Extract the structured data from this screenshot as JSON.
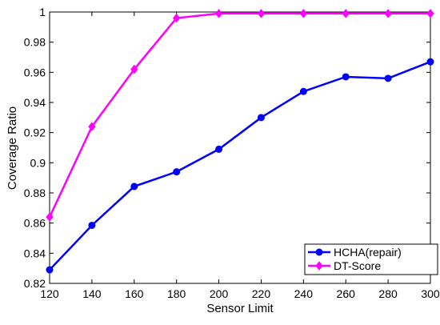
{
  "chart_data": {
    "type": "line",
    "x_label": "Sensor Limit",
    "y_label": "Coverage Ratio",
    "x": [
      120,
      140,
      160,
      180,
      200,
      220,
      240,
      260,
      280,
      300
    ],
    "series": [
      {
        "name": "HCHA(repair)",
        "color": "#0000ff",
        "marker": "circle",
        "values": [
          0.829,
          0.8585,
          0.8843,
          0.894,
          0.909,
          0.93,
          0.9473,
          0.957,
          0.956,
          0.967
        ]
      },
      {
        "name": "DT-Score",
        "color": "#ff00ff",
        "marker": "diamond",
        "values": [
          0.864,
          0.924,
          0.962,
          0.996,
          0.999,
          0.999,
          0.999,
          0.999,
          0.999,
          0.999
        ]
      }
    ],
    "xlim": [
      120,
      300
    ],
    "xticks": [
      120,
      140,
      160,
      180,
      200,
      220,
      240,
      260,
      280,
      300
    ],
    "ylim": [
      0.82,
      1
    ],
    "yticks": [
      0.82,
      0.84,
      0.86,
      0.88,
      0.9,
      0.92,
      0.94,
      0.96,
      0.98,
      1
    ],
    "grid": false,
    "legend": "lower-right"
  }
}
